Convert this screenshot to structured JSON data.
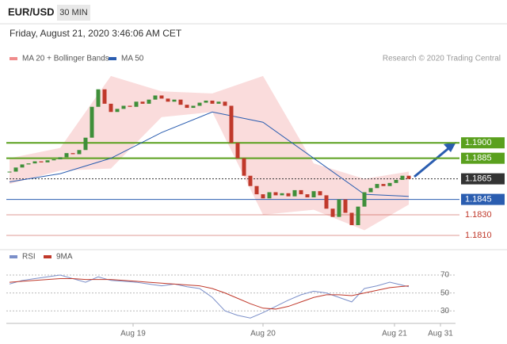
{
  "header": {
    "symbol": "EUR/USD",
    "interval": "30 MIN",
    "timestamp": "Friday, August 21, 2020 3:46:06 AM CET",
    "credit": "Research © 2020 Trading Central"
  },
  "chart_data": [
    {
      "type": "candlestick",
      "ylim": [
        1.18,
        1.2008
      ],
      "xlim": [
        -0.5,
        69.75
      ],
      "up_color": "#3f8f3a",
      "down_color": "#c0392b",
      "closes": [
        1.1872,
        1.1876,
        1.1879,
        1.188,
        1.1882,
        1.1881,
        1.1883,
        1.1884,
        1.1886,
        1.189,
        1.1889,
        1.1893,
        1.1905,
        1.1935,
        1.1952,
        1.1938,
        1.193,
        1.1933,
        1.1936,
        1.1935,
        1.194,
        1.1938,
        1.1942,
        1.1946,
        1.1943,
        1.194,
        1.1942,
        1.1937,
        1.1934,
        1.1936,
        1.1939,
        1.1941,
        1.1938,
        1.194,
        1.1936,
        1.19,
        1.1885,
        1.1868,
        1.1858,
        1.185,
        1.1846,
        1.1852,
        1.1849,
        1.1851,
        1.1848,
        1.1854,
        1.185,
        1.1847,
        1.1853,
        1.1849,
        1.1836,
        1.1828,
        1.1845,
        1.1832,
        1.182,
        1.1838,
        1.1852,
        1.1856,
        1.186,
        1.1858,
        1.1861,
        1.1864,
        1.1868,
        1.1865
      ],
      "bands": {
        "name": "MA 20 + Bollinger Bands",
        "color": "#f08c8c",
        "x": [
          0,
          8,
          16,
          24,
          32,
          40,
          48,
          56,
          63
        ],
        "upper": [
          1.1885,
          1.1895,
          1.1965,
          1.195,
          1.1948,
          1.1965,
          1.188,
          1.1865,
          1.1872
        ],
        "lower": [
          1.186,
          1.1873,
          1.1875,
          1.1925,
          1.193,
          1.183,
          1.1835,
          1.1815,
          1.184
        ]
      },
      "ma50": {
        "name": "MA 50",
        "color": "#2a5db0",
        "x": [
          0,
          8,
          16,
          24,
          32,
          40,
          48,
          56,
          63
        ],
        "values": [
          1.1862,
          1.187,
          1.1885,
          1.191,
          1.193,
          1.192,
          1.1885,
          1.185,
          1.1848
        ]
      },
      "levels": [
        {
          "value": 1.19,
          "label": "1.1900",
          "color": "#5aa01e",
          "style": "box"
        },
        {
          "value": 1.1885,
          "label": "1.1885",
          "color": "#5aa01e",
          "style": "box"
        },
        {
          "value": 1.1865,
          "label": "1.1865",
          "color": "#333333",
          "style": "box"
        },
        {
          "value": 1.1845,
          "label": "1.1845",
          "color": "#2a5db0",
          "style": "box"
        },
        {
          "value": 1.183,
          "label": "1.1830",
          "color": "#c0392b",
          "style": "text"
        },
        {
          "value": 1.181,
          "label": "1.1810",
          "color": "#c0392b",
          "style": "text"
        }
      ]
    },
    {
      "type": "line",
      "ylim": [
        16,
        78
      ],
      "yticks": [
        30,
        50,
        70
      ],
      "xlim": [
        -0.5,
        69.75
      ],
      "x": [
        0,
        2,
        4,
        6,
        8,
        10,
        12,
        14,
        16,
        18,
        20,
        22,
        24,
        26,
        28,
        30,
        32,
        34,
        36,
        38,
        40,
        42,
        44,
        46,
        48,
        50,
        52,
        54,
        56,
        58,
        60,
        63
      ],
      "series": [
        {
          "name": "RSI",
          "color": "#7b8fc9",
          "values": [
            60,
            64,
            66,
            68,
            70,
            66,
            62,
            68,
            64,
            63,
            62,
            60,
            58,
            60,
            57,
            55,
            45,
            30,
            25,
            22,
            28,
            35,
            42,
            48,
            52,
            50,
            45,
            40,
            55,
            58,
            62,
            57
          ]
        },
        {
          "name": "9MA",
          "color": "#c0392b",
          "values": [
            62,
            63,
            64,
            65,
            66,
            66,
            65,
            65,
            65,
            64,
            63,
            62,
            61,
            60,
            59,
            58,
            55,
            50,
            44,
            38,
            33,
            32,
            35,
            40,
            45,
            48,
            48,
            47,
            50,
            53,
            56,
            58
          ]
        }
      ],
      "xlabels": [
        {
          "value": 19.5,
          "label": "Aug 19"
        },
        {
          "value": 40,
          "label": "Aug 20"
        },
        {
          "value": 60.75,
          "label": "Aug 21"
        },
        {
          "value": 68,
          "label": "Aug 31"
        }
      ]
    }
  ]
}
